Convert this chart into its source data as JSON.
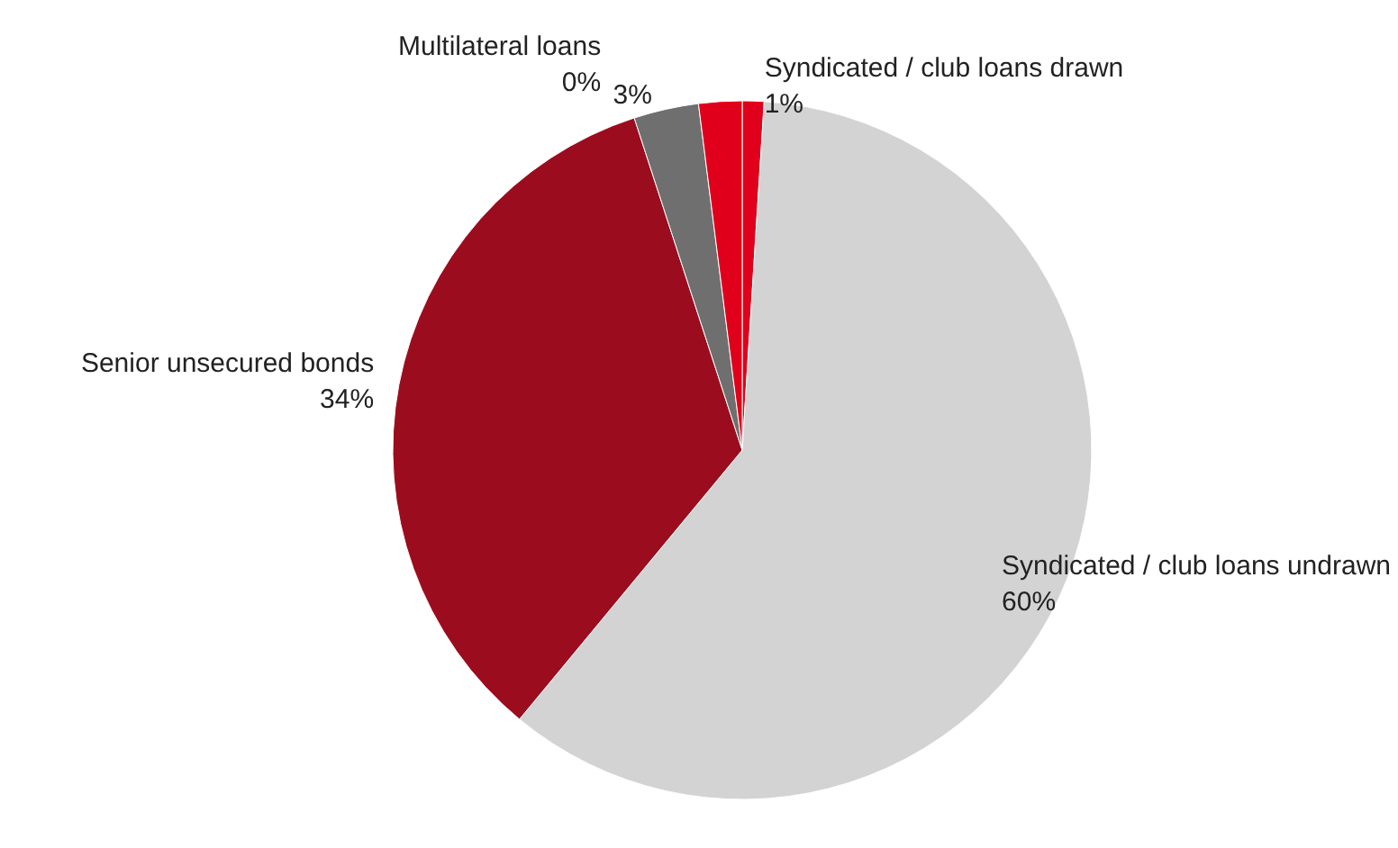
{
  "chart_data": {
    "type": "pie",
    "categories": [
      "Syndicated / club loans drawn",
      "Syndicated / club loans undrawn",
      "Senior unsecured bonds",
      "Multilateral loans",
      null,
      null
    ],
    "values": [
      1,
      60,
      34,
      0,
      3,
      2
    ],
    "value_labels": [
      "1%",
      "60%",
      "34%",
      "0%",
      "3%",
      null
    ],
    "colors": [
      "#e0001b",
      "#d3d3d3",
      "#9b0d1e",
      "#c0001a",
      "#6f6f6f",
      "#e0001b"
    ],
    "legend": false
  }
}
